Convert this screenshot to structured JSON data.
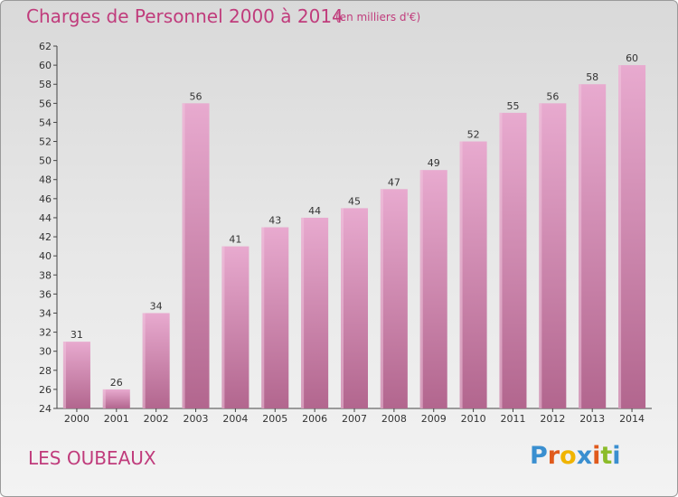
{
  "header": {
    "title": "Charges de Personnel 2000 à 2014",
    "unit": "(en milliers d'€)"
  },
  "footer": {
    "commune": "LES OUBEAUX",
    "logo_letters": [
      "P",
      "r",
      "o",
      "x",
      "i",
      "t",
      "i"
    ],
    "logo_colors": [
      "#3a8fd0",
      "#e05a1c",
      "#f0b400",
      "#3a8fd0",
      "#e05a1c",
      "#8cbc2a",
      "#3a8fd0"
    ]
  },
  "colors": {
    "bar_top": "#e8aacf",
    "bar_bottom": "#b2668e",
    "bar_side": "#f1c6de",
    "title": "#c03c7c"
  },
  "chart_data": {
    "type": "bar",
    "categories": [
      "2000",
      "2001",
      "2002",
      "2003",
      "2004",
      "2005",
      "2006",
      "2007",
      "2008",
      "2009",
      "2010",
      "2011",
      "2012",
      "2013",
      "2014"
    ],
    "values": [
      31,
      26,
      34,
      56,
      41,
      43,
      44,
      45,
      47,
      49,
      52,
      55,
      56,
      58,
      60
    ],
    "title": "Charges de Personnel 2000 à 2014",
    "ylim": [
      24,
      62
    ],
    "yticks": [
      24,
      26,
      28,
      30,
      32,
      34,
      36,
      38,
      40,
      42,
      44,
      46,
      48,
      50,
      52,
      54,
      56,
      58,
      60,
      62
    ],
    "grid": false,
    "legend": "none"
  }
}
